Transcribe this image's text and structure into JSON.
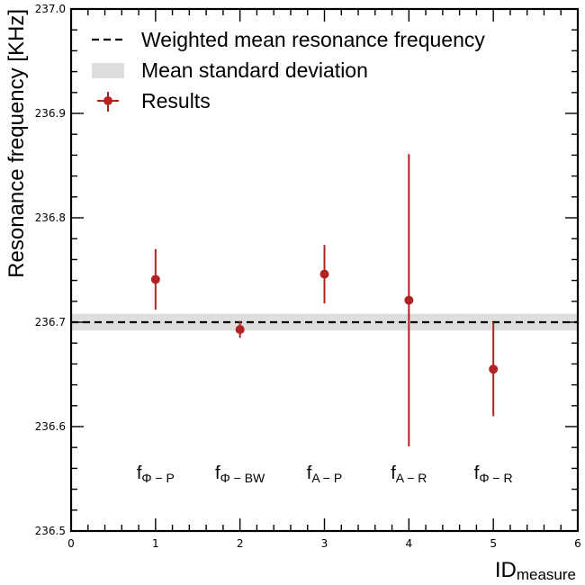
{
  "chart_data": {
    "type": "scatter",
    "title": "",
    "xlabel": "ID",
    "xlabel_sub": "measure",
    "ylabel": "Resonance frequency [KHz]",
    "xlim": [
      0,
      6
    ],
    "ylim": [
      236.5,
      237.0
    ],
    "x_ticks": [
      0,
      1,
      2,
      3,
      4,
      5,
      6
    ],
    "x_tick_labels": [
      "0",
      "1",
      "2",
      "3",
      "4",
      "5",
      "6"
    ],
    "y_ticks": [
      236.5,
      236.6,
      236.7,
      236.8,
      236.9,
      237.0
    ],
    "y_tick_labels": [
      "236.5",
      "236.6",
      "236.7",
      "236.8",
      "236.9",
      "237.0"
    ],
    "grid": false,
    "legend_position": "top-left",
    "colors": {
      "points": "#b22222",
      "mean_line": "#000000",
      "band": "#dedede"
    },
    "weighted_mean": {
      "label": "Weighted mean resonance frequency",
      "value": 236.7
    },
    "std_band": {
      "label": "Mean standard deviation",
      "low": 236.692,
      "high": 236.708
    },
    "series": [
      {
        "name": "Results",
        "x": [
          1,
          2,
          3,
          4,
          5
        ],
        "y": [
          236.741,
          236.693,
          236.746,
          236.721,
          236.655
        ],
        "yerr": [
          0.029,
          0.008,
          0.028,
          0.14,
          0.045
        ]
      }
    ],
    "annotations": [
      {
        "x": 1,
        "y": 236.55,
        "base": "f",
        "sub": "Φ − P"
      },
      {
        "x": 2,
        "y": 236.55,
        "base": "f",
        "sub": "Φ − BW"
      },
      {
        "x": 3,
        "y": 236.55,
        "base": "f",
        "sub": "A − P"
      },
      {
        "x": 4,
        "y": 236.55,
        "base": "f",
        "sub": "A − R"
      },
      {
        "x": 5,
        "y": 236.55,
        "base": "f",
        "sub": "Φ − R"
      }
    ]
  }
}
